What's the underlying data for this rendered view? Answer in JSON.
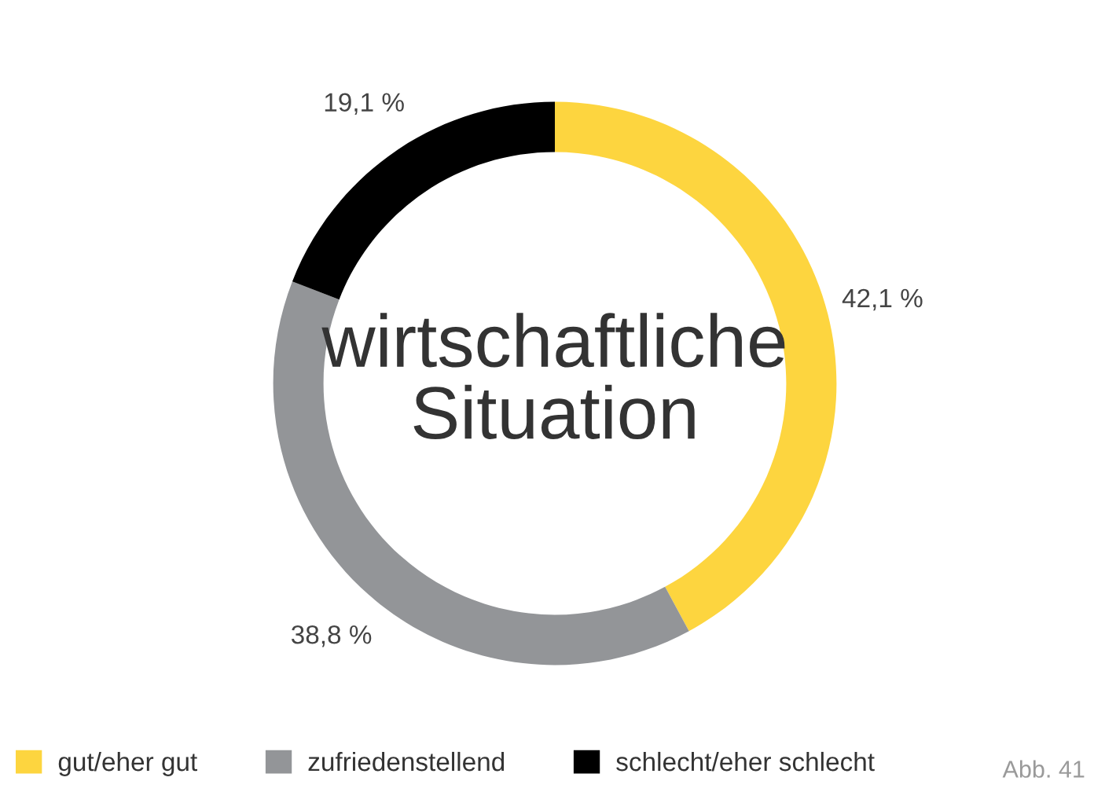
{
  "chart_data": {
    "type": "donut",
    "title": "wirtschaftliche\nSituation",
    "categories": [
      "gut/eher gut",
      "zufriedenstellend",
      "schlecht/eher schlecht"
    ],
    "values": [
      42.1,
      38.8,
      19.1
    ],
    "value_labels": [
      "42,1 %",
      "38,8 %",
      "19,1 %"
    ],
    "colors": [
      "#fdd53f",
      "#939598",
      "#000000"
    ],
    "legend": "bottom",
    "annotations": [
      "Abb. 41"
    ]
  }
}
